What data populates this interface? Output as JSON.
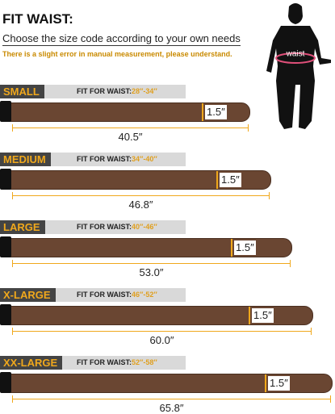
{
  "header": {
    "title": "FIT WAIST:",
    "subtitle": "Choose the size code according to your own needs",
    "note": "There is a slight error in manual measurement, please understand.",
    "figure_label": "waist"
  },
  "sizes": [
    {
      "name": "SMALL",
      "fit_label": "FIT FOR WAIST:",
      "range": "28″-34″",
      "width": "1.5″",
      "length": "40.5″"
    },
    {
      "name": "MEDIUM",
      "fit_label": "FIT FOR WAIST:",
      "range": "34″-40″",
      "width": "1.5″",
      "length": "46.8″"
    },
    {
      "name": "LARGE",
      "fit_label": "FIT FOR WAIST:",
      "range": "40″-46″",
      "width": "1.5″",
      "length": "53.0″"
    },
    {
      "name": "X-LARGE",
      "fit_label": "FIT FOR WAIST:",
      "range": "46″-52″",
      "width": "1.5″",
      "length": "60.0″"
    },
    {
      "name": "XX-LARGE",
      "fit_label": "FIT FOR WAIST:",
      "range": "52″-58″",
      "width": "1.5″",
      "length": "65.8″"
    }
  ]
}
